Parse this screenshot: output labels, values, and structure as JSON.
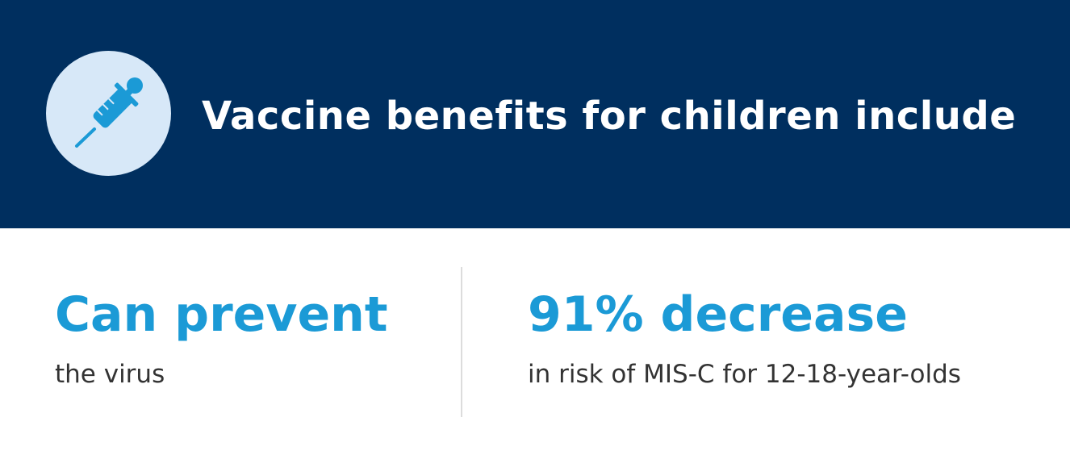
{
  "header": {
    "title": "Vaccine benefits for children include",
    "icon": "syringe-icon",
    "background_color": "#002f5f",
    "icon_circle_color": "#d7e8f8",
    "icon_color": "#1b9ad6"
  },
  "stats": [
    {
      "value": "Can prevent",
      "description": "the virus"
    },
    {
      "value": "91% decrease",
      "description": "in risk of MIS-C for 12-18-year-olds"
    }
  ],
  "accent_color": "#1b9ad6"
}
